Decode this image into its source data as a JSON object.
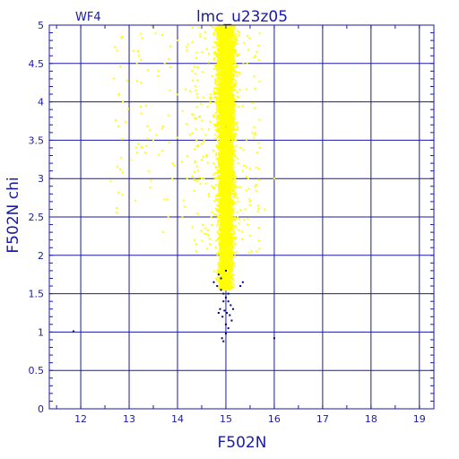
{
  "chart_data": {
    "type": "scatter",
    "title": "lmc_u23z05",
    "subtitle": "WF4",
    "xlabel": "F502N",
    "ylabel": "F502N chi",
    "xlim": [
      11.35,
      19.3
    ],
    "ylim": [
      0,
      5
    ],
    "grid": true,
    "x_ticks": [
      12,
      13,
      14,
      15,
      16,
      17,
      18,
      19
    ],
    "y_ticks": [
      0,
      0.5,
      1,
      1.5,
      2,
      2.5,
      3,
      3.5,
      4,
      4.5,
      5
    ],
    "colors": {
      "frame": "#1a1aa8",
      "grid": "#1a1aa8",
      "text": "#1a1aa8",
      "points_main": "#ffff00",
      "points_outlier": "#000080"
    },
    "series": [
      {
        "color": "#ffff00",
        "x": [
          15.0,
          14.97,
          15.02,
          14.93,
          15.08,
          14.88,
          15.12,
          14.95,
          15.05,
          14.9,
          15.1,
          14.85,
          15.15,
          14.98,
          15.03,
          14.92,
          15.06,
          14.87,
          15.13,
          15.0,
          14.96,
          15.04,
          14.91,
          15.09,
          14.83,
          15.18,
          14.99,
          15.01,
          14.94,
          15.07,
          14.89,
          15.11,
          14.86,
          15.14,
          15.0,
          14.97,
          15.02,
          14.93,
          15.08,
          14.95,
          15.05,
          14.9,
          15.1,
          14.98,
          15.03,
          14.8,
          15.2,
          14.75,
          15.25,
          14.7,
          15.3,
          14.65,
          15.35,
          14.6,
          15.4,
          14.55,
          15.45,
          14.5,
          15.5,
          14.45,
          14.4,
          14.35,
          15.55,
          15.6,
          14.3,
          14.2,
          14.1,
          15.7,
          13.2,
          12.8,
          13.5,
          13.9,
          14.0,
          13.7,
          15.8,
          16.0
        ],
        "y": [
          3.0,
          2.8,
          3.2,
          2.6,
          3.4,
          2.4,
          3.6,
          2.2,
          3.8,
          2.0,
          4.0,
          1.9,
          4.2,
          1.8,
          4.4,
          1.7,
          4.6,
          2.5,
          3.5,
          4.8,
          2.9,
          3.1,
          2.7,
          3.3,
          3.0,
          2.8,
          4.9,
          2.1,
          3.7,
          2.3,
          3.9,
          2.6,
          4.1,
          3.2,
          1.6,
          4.3,
          2.4,
          4.5,
          2.0,
          4.7,
          1.75,
          3.6,
          2.2,
          5.0,
          1.85,
          3.0,
          2.9,
          3.2,
          2.7,
          2.5,
          3.4,
          2.8,
          3.1,
          3.3,
          2.6,
          3.5,
          2.4,
          3.0,
          2.7,
          3.8,
          4.1,
          2.2,
          3.6,
          2.9,
          4.4,
          3.0,
          2.5,
          3.4,
          4.6,
          4.1,
          3.5,
          3.2,
          4.8,
          2.3,
          2.6,
          3.0
        ]
      },
      {
        "color": "#000080",
        "x": [
          14.82,
          14.9,
          14.95,
          15.0,
          15.05,
          15.1,
          14.88,
          14.97,
          15.02,
          15.08,
          15.15,
          14.93,
          15.12,
          14.85,
          15.0,
          14.92,
          14.95,
          15.05,
          15.3,
          15.35,
          11.85,
          14.85,
          14.9,
          15.0,
          14.75,
          14.95,
          15.05,
          15.0,
          16.0
        ],
        "y": [
          1.6,
          1.55,
          1.5,
          1.45,
          1.4,
          1.35,
          1.3,
          1.28,
          1.25,
          1.22,
          1.3,
          1.2,
          1.15,
          1.25,
          1.1,
          0.92,
          0.88,
          1.05,
          1.6,
          1.65,
          1.01,
          1.75,
          1.7,
          1.8,
          1.65,
          1.4,
          1.5,
          0.98,
          0.92
        ]
      }
    ]
  }
}
